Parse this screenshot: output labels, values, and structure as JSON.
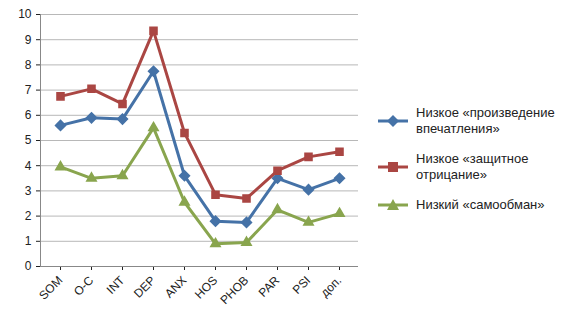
{
  "chart_data": {
    "type": "line",
    "categories": [
      "SOM",
      "O-C",
      "INT",
      "DEP",
      "ANX",
      "HOS",
      "PHOB",
      "PAR",
      "PSI",
      "доп."
    ],
    "series": [
      {
        "name": "Низкое «произведение впечатления»",
        "color": "#4572A7",
        "marker": "diamond",
        "values": [
          5.6,
          5.9,
          5.85,
          7.75,
          3.6,
          1.8,
          1.75,
          3.5,
          3.05,
          3.5
        ]
      },
      {
        "name": "Низкое «защитное отрицание»",
        "color": "#AA4643",
        "marker": "square",
        "values": [
          6.75,
          7.05,
          6.45,
          9.35,
          5.3,
          2.85,
          2.7,
          3.8,
          4.35,
          4.55
        ]
      },
      {
        "name": "Низкий «самообман»",
        "color": "#89A54E",
        "marker": "triangle",
        "values": [
          3.95,
          3.5,
          3.6,
          5.5,
          2.55,
          0.9,
          0.95,
          2.25,
          1.75,
          2.1
        ]
      }
    ],
    "ylim": [
      0,
      10
    ],
    "yticks": [
      0,
      1,
      2,
      3,
      4,
      5,
      6,
      7,
      8,
      9,
      10
    ],
    "grid": true,
    "legend": "right"
  }
}
